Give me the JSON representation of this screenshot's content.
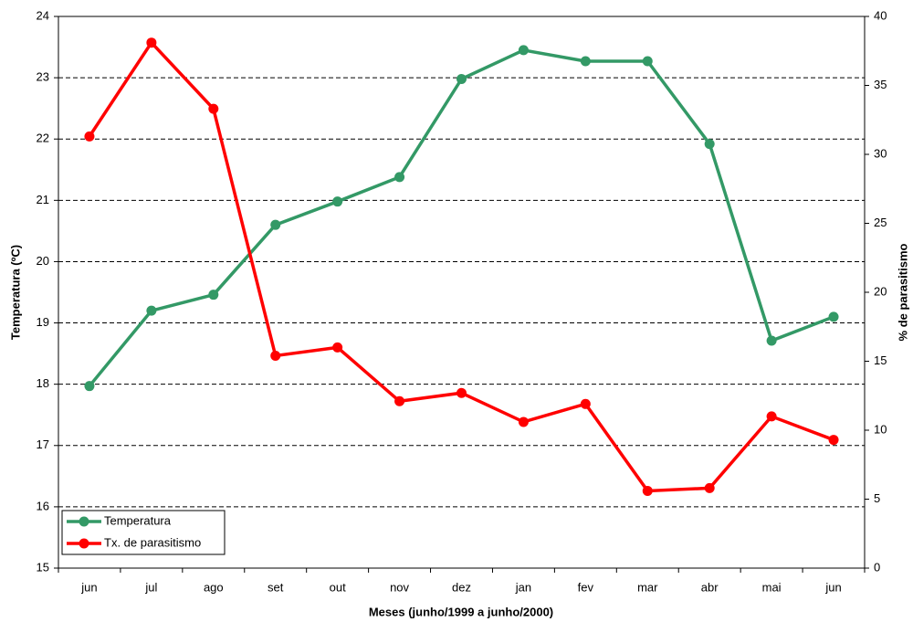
{
  "chart_data": {
    "type": "line",
    "x_label": "Meses (junho/1999 a junho/2000)",
    "y_label": "Temperatura (ºC)",
    "y2_label": "% de parasitismo",
    "categories": [
      "jun",
      "jul",
      "ago",
      "set",
      "out",
      "nov",
      "dez",
      "jan",
      "fev",
      "mar",
      "abr",
      "mai",
      "jun"
    ],
    "series": [
      {
        "name": "Temperatura",
        "color": "#339966",
        "values": [
          17.97,
          19.2,
          19.46,
          20.6,
          20.98,
          21.38,
          22.98,
          23.45,
          23.27,
          23.27,
          21.92,
          18.71,
          19.1
        ]
      },
      {
        "name": "Tx. de parasitismo",
        "color": "#ff0000",
        "axis": "y2",
        "values": [
          31.3,
          38.1,
          33.3,
          15.4,
          16.0,
          12.1,
          12.7,
          10.6,
          11.9,
          5.6,
          5.8,
          11.0,
          9.3
        ]
      }
    ],
    "ylim": [
      15,
      24
    ],
    "yticks": [
      15,
      16,
      17,
      18,
      19,
      20,
      21,
      22,
      23,
      24
    ],
    "y2lim": [
      0,
      40
    ],
    "y2ticks": [
      0,
      5,
      10,
      15,
      20,
      25,
      30,
      35,
      40
    ],
    "grid": true,
    "legend": "lower left"
  }
}
